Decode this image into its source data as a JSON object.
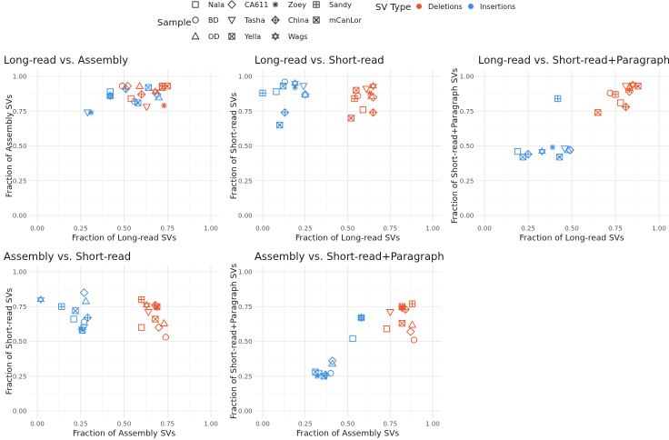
{
  "legend": {
    "sample_title": "Sample",
    "samples": [
      {
        "name": "Nala",
        "shape": "square"
      },
      {
        "name": "BD",
        "shape": "circle"
      },
      {
        "name": "OD",
        "shape": "triangle-up"
      },
      {
        "name": "CA611",
        "shape": "diamond"
      },
      {
        "name": "Tasha",
        "shape": "triangle-down"
      },
      {
        "name": "Yella",
        "shape": "square-cross"
      },
      {
        "name": "Zoey",
        "shape": "asterisk"
      },
      {
        "name": "China",
        "shape": "diamond-plus"
      },
      {
        "name": "Wags",
        "shape": "star-of-david"
      },
      {
        "name": "Sandy",
        "shape": "square-plus"
      },
      {
        "name": "mCanLor",
        "shape": "square-x"
      }
    ],
    "type_title": "SV Type",
    "types": [
      {
        "key": "D",
        "name": "Deletions",
        "color": "#E8582E"
      },
      {
        "key": "I",
        "name": "Insertions",
        "color": "#3D8FE2"
      }
    ]
  },
  "chart_data": [
    {
      "type": "scatter",
      "title": "Long-read vs. Assembly",
      "xlabel": "Fraction of Long-read SVs",
      "ylabel": "Fraction of Assembly SVs",
      "xlim": [
        0,
        1
      ],
      "ylim": [
        0,
        1
      ],
      "ticks": [
        "0.00",
        "0.25",
        "0.50",
        "0.75",
        "1.00"
      ],
      "points": [
        [
          "Tasha",
          "I",
          0.29,
          0.74
        ],
        [
          "Zoey",
          "I",
          0.31,
          0.74
        ],
        [
          "Nala",
          "I",
          0.42,
          0.89
        ],
        [
          "Sandy",
          "I",
          0.42,
          0.86
        ],
        [
          "Wags",
          "I",
          0.42,
          0.86
        ],
        [
          "China",
          "I",
          0.51,
          0.91
        ],
        [
          "Yella",
          "I",
          0.64,
          0.92
        ],
        [
          "BD",
          "I",
          0.56,
          0.82
        ],
        [
          "mCanLor",
          "I",
          0.58,
          0.81
        ],
        [
          "OD",
          "I",
          0.7,
          0.85
        ],
        [
          "CA611",
          "I",
          0.69,
          0.87
        ],
        [
          "BD",
          "D",
          0.49,
          0.93
        ],
        [
          "CA611",
          "D",
          0.52,
          0.93
        ],
        [
          "Nala",
          "D",
          0.54,
          0.84
        ],
        [
          "OD",
          "D",
          0.59,
          0.93
        ],
        [
          "China",
          "D",
          0.6,
          0.87
        ],
        [
          "Tasha",
          "D",
          0.63,
          0.78
        ],
        [
          "Wags",
          "D",
          0.68,
          0.89
        ],
        [
          "Sandy",
          "D",
          0.72,
          0.93
        ],
        [
          "mCanLor",
          "D",
          0.75,
          0.93
        ],
        [
          "Zoey",
          "D",
          0.73,
          0.79
        ],
        [
          "Yella",
          "D",
          0.72,
          0.92
        ]
      ]
    },
    {
      "type": "scatter",
      "title": "Long-read vs. Short-read",
      "xlabel": "Fraction of Long-read SVs",
      "ylabel": "Fraction of Short-read SVs",
      "xlim": [
        0,
        1
      ],
      "ylim": [
        0,
        1
      ],
      "ticks": [
        "0.00",
        "0.25",
        "0.50",
        "0.75",
        "1.00"
      ],
      "points": [
        [
          "Sandy",
          "I",
          0.0,
          0.88
        ],
        [
          "Nala",
          "I",
          0.08,
          0.89
        ],
        [
          "BD",
          "I",
          0.13,
          0.96
        ],
        [
          "Yella",
          "I",
          0.12,
          0.93
        ],
        [
          "Tasha",
          "I",
          0.24,
          0.93
        ],
        [
          "Wags",
          "I",
          0.19,
          0.95
        ],
        [
          "Zoey",
          "I",
          0.19,
          0.92
        ],
        [
          "CA611",
          "I",
          0.25,
          0.87
        ],
        [
          "OD",
          "I",
          0.25,
          0.87
        ],
        [
          "China",
          "I",
          0.13,
          0.74
        ],
        [
          "mCanLor",
          "I",
          0.1,
          0.65
        ],
        [
          "mCanLor",
          "D",
          0.52,
          0.7
        ],
        [
          "Nala",
          "D",
          0.59,
          0.76
        ],
        [
          "Sandy",
          "D",
          0.54,
          0.84
        ],
        [
          "Yella",
          "D",
          0.55,
          0.9
        ],
        [
          "BD",
          "D",
          0.56,
          0.86
        ],
        [
          "Tasha",
          "D",
          0.61,
          0.91
        ],
        [
          "Zoey",
          "D",
          0.63,
          0.88
        ],
        [
          "Wags",
          "D",
          0.65,
          0.93
        ],
        [
          "CA611",
          "D",
          0.65,
          0.85
        ],
        [
          "OD",
          "D",
          0.64,
          0.86
        ],
        [
          "China",
          "D",
          0.65,
          0.74
        ]
      ]
    },
    {
      "type": "scatter",
      "title": "Long-read vs. Short-read+Paragraph",
      "xlabel": "Fraction of Long-read SVs",
      "ylabel": "Fraction of Short-read+Paragraph SVs",
      "xlim": [
        0,
        1
      ],
      "ylim": [
        0,
        1
      ],
      "ticks": [
        "0.00",
        "0.25",
        "0.50",
        "0.75",
        "1.00"
      ],
      "points": [
        [
          "Nala",
          "I",
          0.19,
          0.46
        ],
        [
          "Yella",
          "I",
          0.22,
          0.42
        ],
        [
          "China",
          "I",
          0.25,
          0.44
        ],
        [
          "Wags",
          "I",
          0.33,
          0.46
        ],
        [
          "Zoey",
          "I",
          0.39,
          0.49
        ],
        [
          "mCanLor",
          "I",
          0.43,
          0.42
        ],
        [
          "Sandy",
          "I",
          0.42,
          0.84
        ],
        [
          "Tasha",
          "I",
          0.46,
          0.48
        ],
        [
          "OD",
          "I",
          0.48,
          0.47
        ],
        [
          "CA611",
          "I",
          0.49,
          0.47
        ],
        [
          "BD",
          "I",
          0.49,
          0.47
        ],
        [
          "Yella",
          "D",
          0.65,
          0.74
        ],
        [
          "BD",
          "D",
          0.72,
          0.88
        ],
        [
          "Sandy",
          "D",
          0.75,
          0.87
        ],
        [
          "Nala",
          "D",
          0.78,
          0.81
        ],
        [
          "China",
          "D",
          0.81,
          0.78
        ],
        [
          "Tasha",
          "D",
          0.81,
          0.93
        ],
        [
          "Zoey",
          "D",
          0.83,
          0.9
        ],
        [
          "OD",
          "D",
          0.83,
          0.92
        ],
        [
          "Wags",
          "D",
          0.85,
          0.94
        ],
        [
          "CA611",
          "D",
          0.83,
          0.89
        ],
        [
          "mCanLor",
          "D",
          0.88,
          0.93
        ]
      ]
    },
    {
      "type": "scatter",
      "title": "Assembly vs. Short-read",
      "xlabel": "Fraction of Assembly SVs",
      "ylabel": "Fraction of Short-read SVs",
      "xlim": [
        0,
        1
      ],
      "ylim": [
        0,
        1
      ],
      "ticks": [
        "0.00",
        "0.25",
        "0.50",
        "0.75",
        "1.00"
      ],
      "points": [
        [
          "Wags",
          "I",
          0.02,
          0.8
        ],
        [
          "Sandy",
          "I",
          0.14,
          0.75
        ],
        [
          "Yella",
          "I",
          0.22,
          0.72
        ],
        [
          "Nala",
          "I",
          0.21,
          0.66
        ],
        [
          "CA611",
          "I",
          0.27,
          0.85
        ],
        [
          "OD",
          "I",
          0.28,
          0.79
        ],
        [
          "China",
          "I",
          0.29,
          0.67
        ],
        [
          "BD",
          "I",
          0.27,
          0.64
        ],
        [
          "Zoey",
          "I",
          0.25,
          0.59
        ],
        [
          "mCanLor",
          "I",
          0.26,
          0.58
        ],
        [
          "Tasha",
          "I",
          0.27,
          0.6
        ],
        [
          "Sandy",
          "D",
          0.6,
          0.8
        ],
        [
          "Wags",
          "D",
          0.63,
          0.76
        ],
        [
          "Tasha",
          "D",
          0.64,
          0.71
        ],
        [
          "Nala",
          "D",
          0.6,
          0.6
        ],
        [
          "China",
          "D",
          0.68,
          0.76
        ],
        [
          "Zoey",
          "D",
          0.69,
          0.74
        ],
        [
          "Yella",
          "D",
          0.68,
          0.66
        ],
        [
          "CA611",
          "D",
          0.7,
          0.6
        ],
        [
          "OD",
          "D",
          0.73,
          0.63
        ],
        [
          "BD",
          "D",
          0.74,
          0.53
        ],
        [
          "mCanLor",
          "D",
          0.69,
          0.75
        ]
      ]
    },
    {
      "type": "scatter",
      "title": "Assembly vs. Short-read+Paragraph",
      "xlabel": "Fraction of Assembly SVs",
      "ylabel": "Fraction of Short-read+Paragraph SVs",
      "xlim": [
        0,
        1
      ],
      "ylim": [
        0,
        1
      ],
      "ticks": [
        "0.00",
        "0.25",
        "0.50",
        "0.75",
        "1.00"
      ],
      "points": [
        [
          "Nala",
          "I",
          0.53,
          0.52
        ],
        [
          "Wags",
          "I",
          0.58,
          0.67
        ],
        [
          "China",
          "I",
          0.37,
          0.26
        ],
        [
          "CA611",
          "I",
          0.41,
          0.36
        ],
        [
          "OD",
          "I",
          0.41,
          0.34
        ],
        [
          "Yella",
          "I",
          0.31,
          0.28
        ],
        [
          "Tasha",
          "I",
          0.33,
          0.27
        ],
        [
          "Zoey",
          "I",
          0.32,
          0.25
        ],
        [
          "mCanLor",
          "I",
          0.36,
          0.25
        ],
        [
          "Sandy",
          "I",
          0.58,
          0.67
        ],
        [
          "BD",
          "I",
          0.4,
          0.27
        ],
        [
          "Nala",
          "D",
          0.73,
          0.59
        ],
        [
          "Tasha",
          "D",
          0.75,
          0.71
        ],
        [
          "Sandy",
          "D",
          0.88,
          0.77
        ],
        [
          "Yella",
          "D",
          0.82,
          0.63
        ],
        [
          "mCanLor",
          "D",
          0.82,
          0.75
        ],
        [
          "Zoey",
          "D",
          0.82,
          0.74
        ],
        [
          "China",
          "D",
          0.84,
          0.73
        ],
        [
          "Wags",
          "D",
          0.82,
          0.74
        ],
        [
          "OD",
          "D",
          0.88,
          0.62
        ],
        [
          "CA611",
          "D",
          0.87,
          0.57
        ],
        [
          "BD",
          "D",
          0.89,
          0.51
        ]
      ]
    }
  ]
}
